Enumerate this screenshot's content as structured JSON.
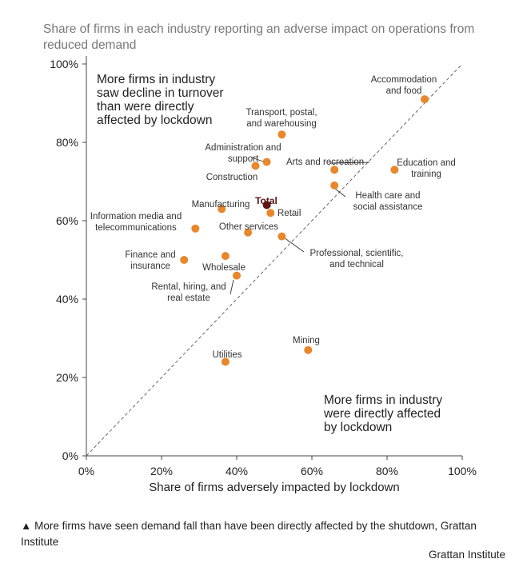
{
  "chart_data": {
    "type": "scatter",
    "title": "Share of firms in each industry reporting an adverse impact on operations from reduced demand",
    "xlabel": "Share of firms adversely impacted by lockdown",
    "ylabel": "",
    "xlim": [
      0,
      100
    ],
    "ylim": [
      0,
      100
    ],
    "x_ticks": [
      "0%",
      "20%",
      "40%",
      "60%",
      "80%",
      "100%"
    ],
    "y_ticks": [
      "0%",
      "20%",
      "40%",
      "60%",
      "80%",
      "100%"
    ],
    "grid": false,
    "reference_line": "diagonal y = x (dashed)",
    "annotation_upper_left": "More firms in industry saw decline in turnover than were directly affected by lockdown",
    "annotation_lower_right": "More firms in industry were directly affected by lockdown",
    "point_color": "#E8872C",
    "total_color": "#5A1414",
    "points": [
      {
        "label": "Accommodation and food",
        "x": 90,
        "y": 91
      },
      {
        "label": "Transport, postal, and warehousing",
        "x": 52,
        "y": 82
      },
      {
        "label": "Administration and support",
        "x": 48,
        "y": 75
      },
      {
        "label": "Construction",
        "x": 45,
        "y": 74
      },
      {
        "label": "Arts and recreation",
        "x": 66,
        "y": 73
      },
      {
        "label": "Education and training",
        "x": 82,
        "y": 73
      },
      {
        "label": "Health care and social assistance",
        "x": 66,
        "y": 69
      },
      {
        "label": "Manufacturing",
        "x": 36,
        "y": 63
      },
      {
        "label": "Total",
        "x": 48,
        "y": 64
      },
      {
        "label": "Retail",
        "x": 49,
        "y": 62
      },
      {
        "label": "Information media and telecommunications",
        "x": 29,
        "y": 58
      },
      {
        "label": "Other services",
        "x": 43,
        "y": 57
      },
      {
        "label": "Professional, scientific, and technical",
        "x": 52,
        "y": 56
      },
      {
        "label": "Finance and insurance",
        "x": 26,
        "y": 50
      },
      {
        "label": "Wholesale",
        "x": 37,
        "y": 51
      },
      {
        "label": "Rental, hiring, and real estate",
        "x": 40,
        "y": 46
      },
      {
        "label": "Mining",
        "x": 59,
        "y": 27
      },
      {
        "label": "Utilities",
        "x": 37,
        "y": 24
      }
    ]
  },
  "caption": "▲ More firms have seen demand fall than have been directly affected by the shutdown, Grattan Institute",
  "credit": "Grattan Institute"
}
